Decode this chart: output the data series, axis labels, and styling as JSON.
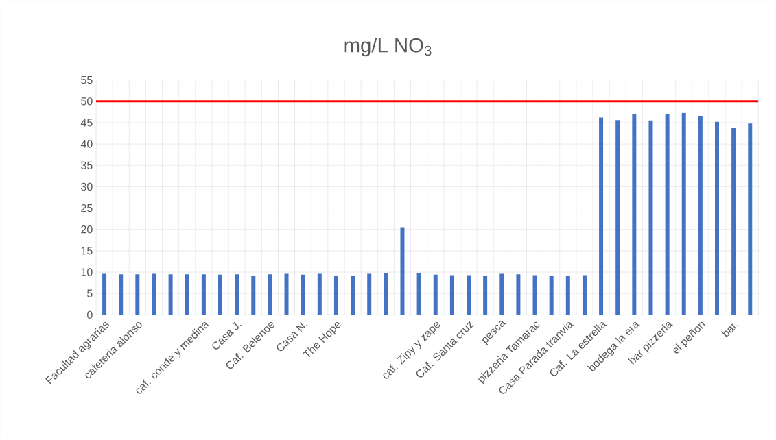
{
  "chart_data": {
    "type": "bar",
    "title": "mg/L NO$_{3}$",
    "categories": [
      "Facultad agrarias",
      null,
      "cafeteria alonso",
      null,
      null,
      null,
      "caf. conde y medina",
      null,
      "Casa J.",
      null,
      "Caf. Belenoe",
      null,
      "Casa N.",
      null,
      "The Hope",
      null,
      null,
      null,
      null,
      null,
      "caf. Zipy y zape",
      null,
      "Caf. Santa cruz",
      null,
      "pesca",
      null,
      "pizzeria Tamarac",
      null,
      "Casa Parada tranvia",
      null,
      "Caf. La estrella",
      null,
      "bodega la era",
      null,
      "bar pizzeria",
      null,
      "el peñon",
      null,
      "bar.",
      null
    ],
    "values": [
      9.6,
      9.5,
      9.5,
      9.6,
      9.5,
      9.5,
      9.5,
      9.4,
      9.5,
      9.2,
      9.5,
      9.6,
      9.4,
      9.6,
      9.2,
      9.1,
      9.6,
      9.8,
      20.5,
      9.7,
      9.4,
      9.3,
      9.3,
      9.2,
      9.6,
      9.5,
      9.3,
      9.2,
      9.2,
      9.3,
      46.2,
      45.6,
      47.0,
      45.5,
      47.0,
      47.3,
      46.6,
      45.2,
      43.7,
      44.8
    ],
    "color": "#4472c4",
    "ylim": [
      0,
      55
    ],
    "yticks": [
      0,
      5,
      10,
      15,
      20,
      25,
      30,
      35,
      40,
      45,
      50,
      55
    ],
    "grid": true,
    "ref_lines": [
      {
        "axis": "y",
        "value": 50,
        "color": "#ff0000"
      }
    ]
  }
}
